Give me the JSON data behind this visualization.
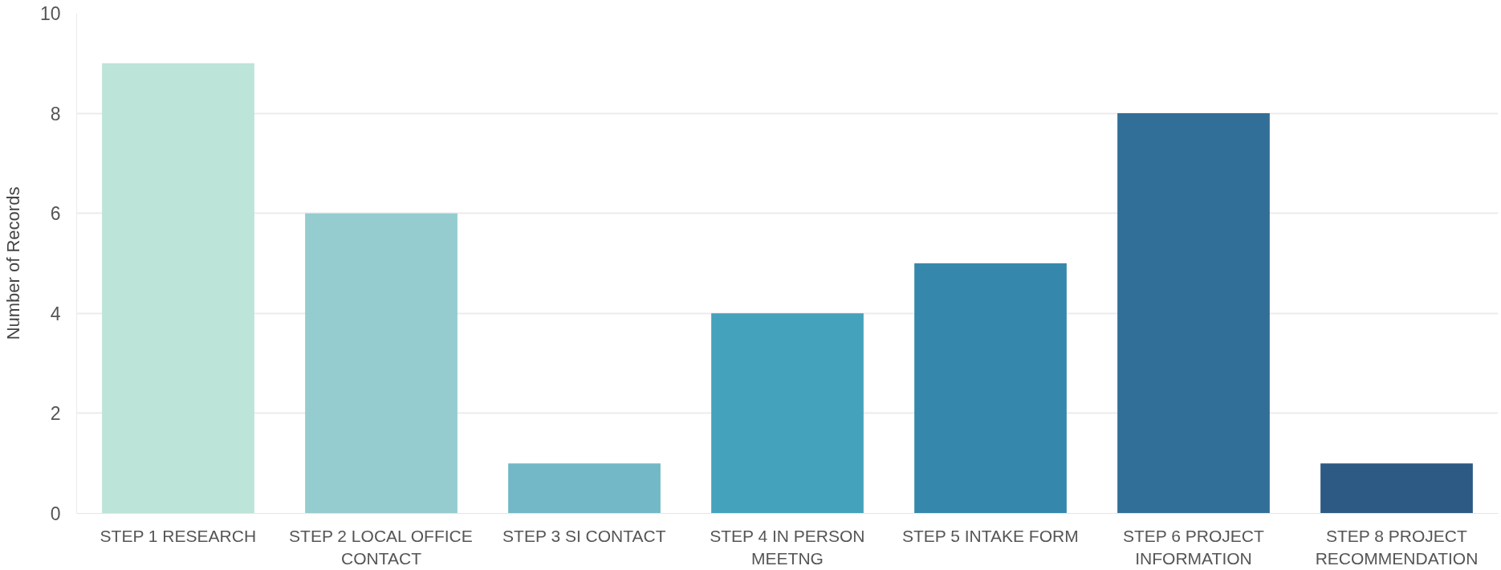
{
  "chart_data": {
    "type": "bar",
    "ylabel": "Number of Records",
    "categories": [
      "STEP 1 RESEARCH",
      "STEP 2 LOCAL OFFICE CONTACT",
      "STEP 3 SI CONTACT",
      "STEP 4 IN PERSON MEETNG",
      "STEP 5 INTAKE FORM",
      "STEP 6 PROJECT INFORMATION",
      "STEP 8 PROJECT RECOMMENDATION"
    ],
    "values": [
      9,
      6,
      1,
      4,
      5,
      8,
      1
    ],
    "colors": [
      "#bce4d8",
      "#94cccf",
      "#72b8c6",
      "#45a2bc",
      "#3588ab",
      "#326f98",
      "#2c5a84"
    ],
    "ylim": [
      0,
      10
    ],
    "yticks": [
      0,
      2,
      4,
      6,
      8,
      10
    ],
    "grid": "y"
  }
}
